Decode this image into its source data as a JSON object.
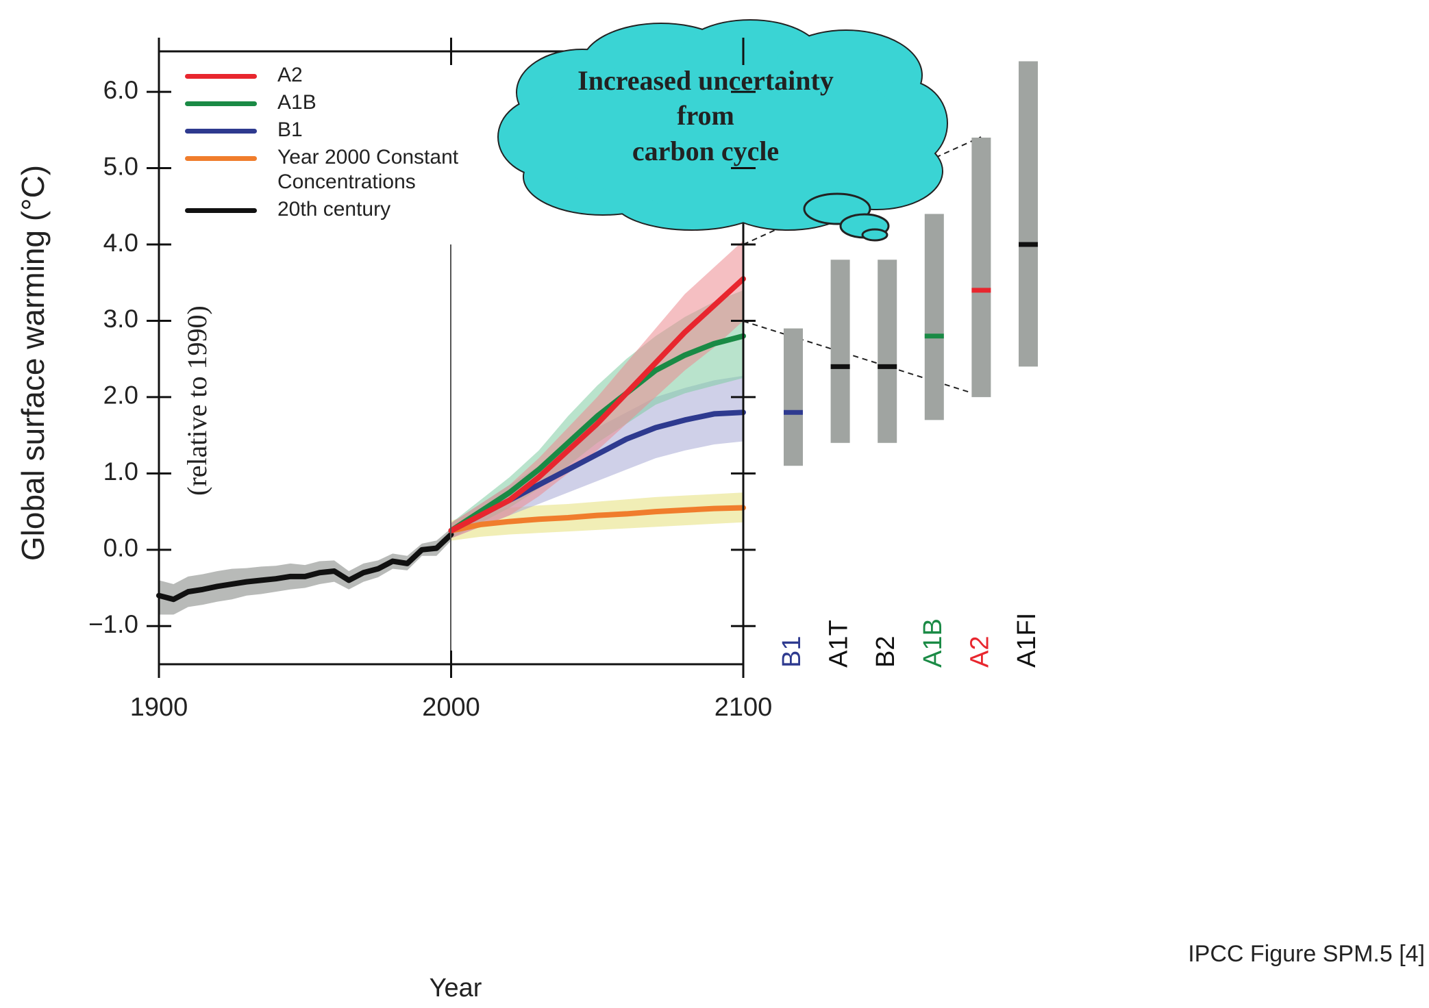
{
  "chart_data": [
    {
      "type": "line",
      "ylabel": "Global surface warming (°C)",
      "xlabel": "Year",
      "note": "(relative to 1990)",
      "callout": [
        "Increased uncertainty",
        "from",
        "carbon cycle"
      ],
      "source": "IPCC Figure SPM.5 [4]",
      "xlim": [
        1900,
        2100
      ],
      "xticks": [
        1900,
        2000,
        2100
      ],
      "ylim": [
        -1.5,
        6.53
      ],
      "yticks": [
        {
          "value": -1,
          "label": "−1.0"
        },
        {
          "value": 0,
          "label": "0.0"
        },
        {
          "value": 1,
          "label": "1.0"
        },
        {
          "value": 2,
          "label": "2.0"
        },
        {
          "value": 3,
          "label": "3.0"
        },
        {
          "value": 4,
          "label": "4.0"
        },
        {
          "value": 5,
          "label": "5.0"
        },
        {
          "value": 6,
          "label": "6.0"
        }
      ],
      "legend": "upper left",
      "series": [
        {
          "name": "A2",
          "color": "#e8262e",
          "band_color": "#ec8a8f",
          "x": [
            2000,
            2010,
            2020,
            2030,
            2040,
            2050,
            2060,
            2070,
            2080,
            2090,
            2100
          ],
          "values": [
            0.25,
            0.45,
            0.65,
            0.95,
            1.3,
            1.65,
            2.05,
            2.45,
            2.85,
            3.2,
            3.55
          ],
          "lower": [
            0.15,
            0.3,
            0.45,
            0.7,
            1.0,
            1.3,
            1.65,
            2.0,
            2.35,
            2.65,
            3.0
          ],
          "upper": [
            0.35,
            0.6,
            0.85,
            1.2,
            1.6,
            2.0,
            2.45,
            2.9,
            3.35,
            3.7,
            4.05
          ]
        },
        {
          "name": "A1B",
          "color": "#1a8a45",
          "band_color": "#7fcca3",
          "x": [
            2000,
            2010,
            2020,
            2030,
            2040,
            2050,
            2060,
            2070,
            2080,
            2090,
            2100
          ],
          "values": [
            0.25,
            0.5,
            0.75,
            1.05,
            1.4,
            1.75,
            2.05,
            2.35,
            2.55,
            2.7,
            2.8
          ],
          "lower": [
            0.15,
            0.35,
            0.55,
            0.8,
            1.1,
            1.4,
            1.65,
            1.9,
            2.05,
            2.15,
            2.25
          ],
          "upper": [
            0.35,
            0.65,
            0.95,
            1.3,
            1.75,
            2.15,
            2.5,
            2.8,
            3.05,
            3.25,
            3.4
          ]
        },
        {
          "name": "B1",
          "color": "#2e3a8f",
          "band_color": "#a7a9d6",
          "x": [
            2000,
            2010,
            2020,
            2030,
            2040,
            2050,
            2060,
            2070,
            2080,
            2090,
            2100
          ],
          "values": [
            0.25,
            0.45,
            0.65,
            0.85,
            1.05,
            1.25,
            1.45,
            1.6,
            1.7,
            1.78,
            1.8
          ],
          "lower": [
            0.15,
            0.3,
            0.45,
            0.6,
            0.75,
            0.9,
            1.05,
            1.2,
            1.3,
            1.38,
            1.42
          ],
          "upper": [
            0.35,
            0.6,
            0.85,
            1.1,
            1.35,
            1.6,
            1.8,
            2.0,
            2.12,
            2.22,
            2.28
          ]
        },
        {
          "name": "Year 2000 Constant Concentrations",
          "color": "#f07d2c",
          "band_color": "#e6e07a",
          "x": [
            2000,
            2010,
            2020,
            2030,
            2040,
            2050,
            2060,
            2070,
            2080,
            2090,
            2100
          ],
          "values": [
            0.25,
            0.33,
            0.37,
            0.4,
            0.42,
            0.45,
            0.47,
            0.5,
            0.52,
            0.54,
            0.55
          ],
          "lower": [
            0.12,
            0.17,
            0.2,
            0.22,
            0.24,
            0.26,
            0.28,
            0.3,
            0.32,
            0.34,
            0.36
          ],
          "upper": [
            0.38,
            0.5,
            0.55,
            0.58,
            0.6,
            0.63,
            0.66,
            0.69,
            0.71,
            0.73,
            0.75
          ]
        },
        {
          "name": "20th century",
          "color": "#111111",
          "band_color": "#7d827e",
          "x": [
            1900,
            1905,
            1910,
            1915,
            1920,
            1925,
            1930,
            1935,
            1940,
            1945,
            1950,
            1955,
            1960,
            1965,
            1970,
            1975,
            1980,
            1985,
            1990,
            1995,
            2000
          ],
          "values": [
            -0.6,
            -0.65,
            -0.55,
            -0.52,
            -0.48,
            -0.45,
            -0.42,
            -0.4,
            -0.38,
            -0.35,
            -0.35,
            -0.3,
            -0.28,
            -0.4,
            -0.3,
            -0.25,
            -0.15,
            -0.18,
            0.0,
            0.02,
            0.2
          ],
          "lower": [
            -0.85,
            -0.85,
            -0.75,
            -0.72,
            -0.68,
            -0.65,
            -0.6,
            -0.58,
            -0.55,
            -0.52,
            -0.5,
            -0.45,
            -0.42,
            -0.52,
            -0.42,
            -0.36,
            -0.25,
            -0.27,
            -0.08,
            -0.08,
            0.12
          ],
          "upper": [
            -0.4,
            -0.45,
            -0.35,
            -0.32,
            -0.28,
            -0.25,
            -0.24,
            -0.22,
            -0.21,
            -0.18,
            -0.2,
            -0.15,
            -0.14,
            -0.28,
            -0.18,
            -0.14,
            -0.05,
            -0.08,
            0.08,
            0.12,
            0.28
          ]
        }
      ]
    },
    {
      "type": "range",
      "categories": [
        "B1",
        "A1T",
        "B2",
        "A1B",
        "A2",
        "A1FI"
      ],
      "colors": [
        "#2e3a8f",
        "#111111",
        "#111111",
        "#1a8a45",
        "#e8262e",
        "#111111"
      ],
      "bar_color": "#a0a4a1",
      "low": [
        1.1,
        1.4,
        1.4,
        1.7,
        2.0,
        2.4
      ],
      "best": [
        1.8,
        2.4,
        2.4,
        2.8,
        3.4,
        4.0
      ],
      "high": [
        2.9,
        3.8,
        3.8,
        4.4,
        5.4,
        6.4
      ]
    }
  ]
}
